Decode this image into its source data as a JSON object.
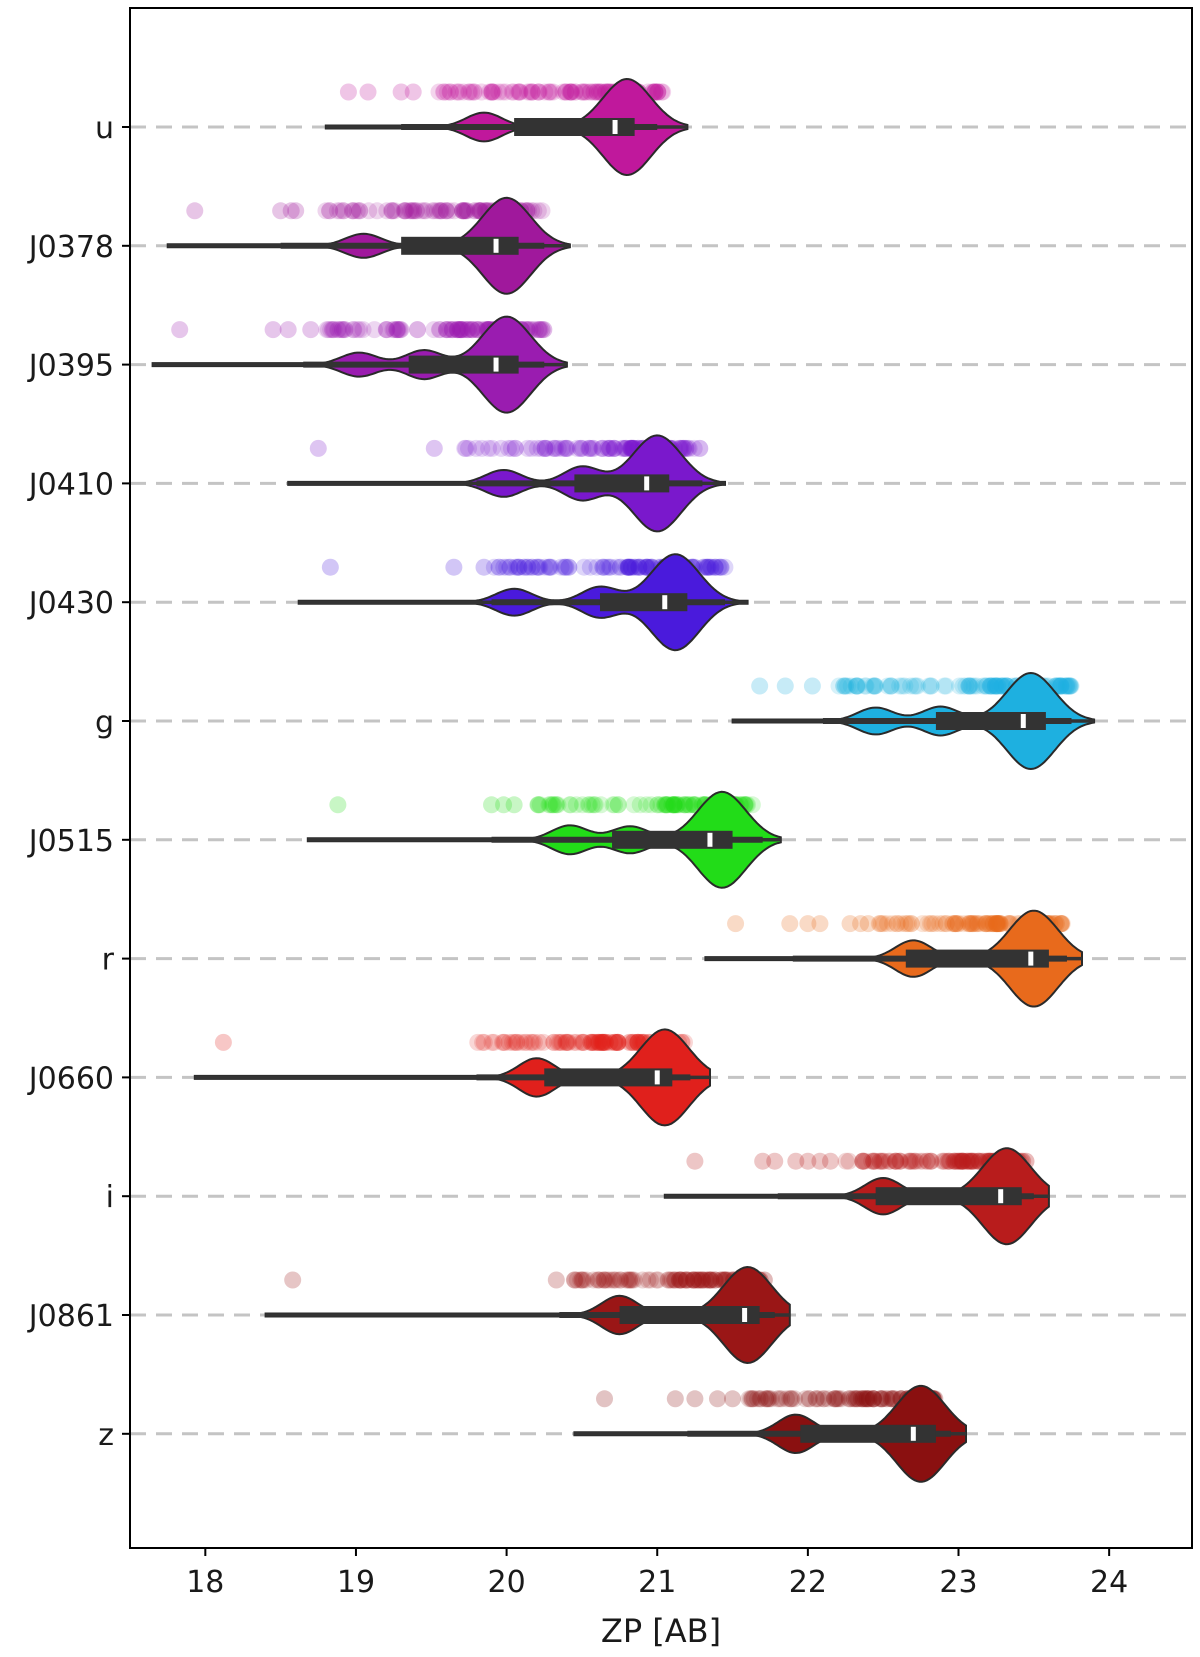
{
  "chart_data": {
    "type": "violin",
    "xlabel": "ZP [AB]",
    "ylabel": "",
    "xlim": [
      17.5,
      24.55
    ],
    "xticks": [
      "18",
      "19",
      "20",
      "21",
      "22",
      "23",
      "24"
    ],
    "grid": "dashed horizontal at each category",
    "categories": [
      {
        "name": "u",
        "color": "#c0189c",
        "min": 18.8,
        "max": 21.2,
        "q1": 20.05,
        "median": 20.72,
        "q3": 20.85,
        "w1": 19.3,
        "w2": 21.0,
        "modes": [
          [
            19.85,
            0.3
          ],
          [
            20.8,
            1.0
          ]
        ],
        "points_range": [
          19.55,
          21.05
        ],
        "outliers": [
          18.95,
          19.08,
          19.3,
          19.38
        ]
      },
      {
        "name": "J0378",
        "color": "#a0189c",
        "min": 17.75,
        "max": 20.42,
        "q1": 19.3,
        "median": 19.93,
        "q3": 20.08,
        "w1": 18.5,
        "w2": 20.25,
        "modes": [
          [
            19.05,
            0.25
          ],
          [
            20.0,
            1.0
          ]
        ],
        "points_range": [
          18.8,
          20.25
        ],
        "outliers": [
          17.93,
          18.5,
          18.57,
          18.6
        ]
      },
      {
        "name": "J0395",
        "color": "#9a1cb0",
        "min": 17.65,
        "max": 20.4,
        "q1": 19.35,
        "median": 19.93,
        "q3": 20.08,
        "w1": 18.65,
        "w2": 20.25,
        "modes": [
          [
            19.02,
            0.25
          ],
          [
            19.45,
            0.3
          ],
          [
            20.0,
            1.0
          ]
        ],
        "points_range": [
          18.8,
          20.25
        ],
        "outliers": [
          17.83,
          18.45,
          18.55,
          18.7
        ]
      },
      {
        "name": "J0410",
        "color": "#7a18cc",
        "min": 18.55,
        "max": 21.45,
        "q1": 20.45,
        "median": 20.93,
        "q3": 21.08,
        "w1": 19.8,
        "w2": 21.3,
        "modes": [
          [
            19.98,
            0.28
          ],
          [
            20.5,
            0.35
          ],
          [
            21.0,
            1.0
          ]
        ],
        "points_range": [
          19.72,
          21.3
        ],
        "outliers": [
          18.75,
          19.52
        ]
      },
      {
        "name": "J0430",
        "color": "#4a1adc",
        "min": 18.62,
        "max": 21.6,
        "q1": 20.62,
        "median": 21.05,
        "q3": 21.2,
        "w1": 19.9,
        "w2": 21.45,
        "modes": [
          [
            20.05,
            0.28
          ],
          [
            20.62,
            0.32
          ],
          [
            21.12,
            1.0
          ]
        ],
        "points_range": [
          19.9,
          21.45
        ],
        "outliers": [
          18.83,
          19.65,
          19.85
        ]
      },
      {
        "name": "g",
        "color": "#1eb0e0",
        "min": 21.5,
        "max": 23.9,
        "q1": 22.85,
        "median": 23.43,
        "q3": 23.58,
        "w1": 22.1,
        "w2": 23.75,
        "modes": [
          [
            22.45,
            0.28
          ],
          [
            22.88,
            0.3
          ],
          [
            23.48,
            1.0
          ]
        ],
        "points_range": [
          22.2,
          23.75
        ],
        "outliers": [
          21.68,
          21.85,
          22.03
        ]
      },
      {
        "name": "J0515",
        "color": "#22dc18",
        "min": 18.68,
        "max": 21.82,
        "q1": 20.7,
        "median": 21.35,
        "q3": 21.5,
        "w1": 19.9,
        "w2": 21.7,
        "modes": [
          [
            20.42,
            0.3
          ],
          [
            20.82,
            0.28
          ],
          [
            21.43,
            1.0
          ]
        ],
        "points_range": [
          20.2,
          21.65
        ],
        "outliers": [
          18.88,
          19.9,
          19.98,
          20.05
        ]
      },
      {
        "name": "r",
        "color": "#e86a1c",
        "min": 21.32,
        "max": 23.82,
        "q1": 22.65,
        "median": 23.48,
        "q3": 23.6,
        "w1": 21.9,
        "w2": 23.72,
        "modes": [
          [
            22.7,
            0.38
          ],
          [
            23.5,
            1.0
          ]
        ],
        "points_range": [
          22.45,
          23.7
        ],
        "outliers": [
          21.52,
          21.88,
          22.0,
          22.08,
          22.28,
          22.35,
          22.4
        ]
      },
      {
        "name": "J0660",
        "color": "#e0201c",
        "min": 17.93,
        "max": 21.35,
        "q1": 20.25,
        "median": 21.0,
        "q3": 21.1,
        "w1": 19.8,
        "w2": 21.22,
        "modes": [
          [
            20.2,
            0.4
          ],
          [
            21.05,
            1.0
          ]
        ],
        "points_range": [
          19.8,
          21.2
        ],
        "outliers": [
          18.12
        ]
      },
      {
        "name": "i",
        "color": "#b81c1c",
        "min": 21.05,
        "max": 23.6,
        "q1": 22.45,
        "median": 23.28,
        "q3": 23.42,
        "w1": 21.8,
        "w2": 23.5,
        "modes": [
          [
            22.5,
            0.38
          ],
          [
            23.32,
            1.0
          ]
        ],
        "points_range": [
          22.25,
          23.45
        ],
        "outliers": [
          21.25,
          21.7,
          21.78,
          21.92,
          22.0,
          22.08,
          22.15
        ]
      },
      {
        "name": "J0861",
        "color": "#9a1616",
        "min": 18.4,
        "max": 21.88,
        "q1": 20.75,
        "median": 21.58,
        "q3": 21.68,
        "w1": 20.35,
        "w2": 21.78,
        "modes": [
          [
            20.75,
            0.4
          ],
          [
            21.6,
            1.0
          ]
        ],
        "points_range": [
          20.45,
          21.72
        ],
        "outliers": [
          18.58,
          20.33,
          20.45
        ]
      },
      {
        "name": "z",
        "color": "#8a1010",
        "min": 20.45,
        "max": 23.05,
        "q1": 21.95,
        "median": 22.7,
        "q3": 22.85,
        "w1": 21.2,
        "w2": 22.95,
        "modes": [
          [
            21.92,
            0.4
          ],
          [
            22.75,
            1.0
          ]
        ],
        "points_range": [
          21.6,
          22.88
        ],
        "outliers": [
          20.65,
          21.12,
          21.25,
          21.4,
          21.5
        ]
      }
    ]
  }
}
